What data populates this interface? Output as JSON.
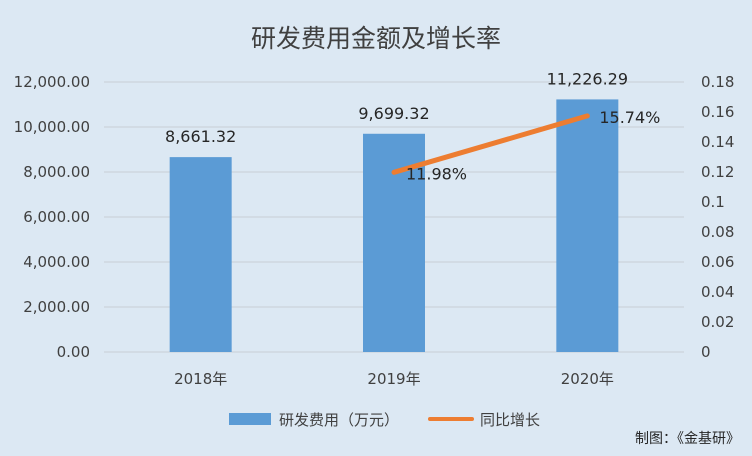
{
  "chart_data": {
    "type": "bar",
    "title": "研发费用金额及增长率",
    "categories": [
      "2018年",
      "2019年",
      "2020年"
    ],
    "series": [
      {
        "name": "研发费用（万元）",
        "type": "bar",
        "axis": "left",
        "values": [
          8661.32,
          9699.32,
          11226.29
        ],
        "labels": [
          "8,661.32",
          "9,699.32",
          "11,226.29"
        ],
        "color": "#5B9BD5"
      },
      {
        "name": "同比增长",
        "type": "line",
        "axis": "right",
        "values": [
          null,
          0.1198,
          0.1574
        ],
        "labels": [
          "",
          "11.98%",
          "15.74%"
        ],
        "color": "#ED7D31"
      }
    ],
    "y_left": {
      "range": [
        0,
        12000
      ],
      "ticks": [
        "0.00",
        "2,000.00",
        "4,000.00",
        "6,000.00",
        "8,000.00",
        "10,000.00",
        "12,000.00"
      ]
    },
    "y_right": {
      "range": [
        0,
        0.18
      ],
      "ticks": [
        "0",
        "0.02",
        "0.04",
        "0.06",
        "0.08",
        "0.1",
        "0.12",
        "0.14",
        "0.16",
        "0.18"
      ]
    },
    "legend_position": "bottom",
    "gridlines": true
  },
  "credit": "制图：《金基研》",
  "colors": {
    "background": "#DCE8F3",
    "grid": "#C8CED6",
    "text": "#404040"
  }
}
